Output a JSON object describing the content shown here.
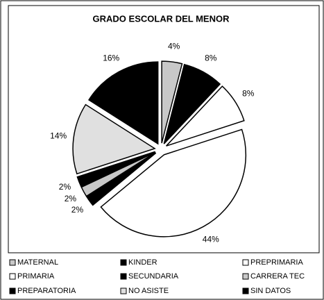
{
  "chart_data": {
    "type": "pie",
    "title": "GRADO ESCOLAR DEL MENOR",
    "categories": [
      "MATERNAL",
      "KINDER",
      "PREPRIMARIA",
      "PRIMARIA",
      "SECUNDARIA",
      "CARRERA TEC",
      "PREPARATORIA",
      "NO ASISTE",
      "SIN DATOS"
    ],
    "values": [
      4,
      8,
      8,
      44,
      2,
      2,
      2,
      14,
      16
    ],
    "value_labels": [
      "4%",
      "8%",
      "8%",
      "44%",
      "2%",
      "2%",
      "2%",
      "14%",
      "16%"
    ],
    "colors": [
      "#c8c8c8",
      "#000000",
      "#ffffff",
      "#ffffff",
      "#000000",
      "#c8c8c8",
      "#000000",
      "#e0e0e0",
      "#000000"
    ],
    "legend": "bottom"
  }
}
